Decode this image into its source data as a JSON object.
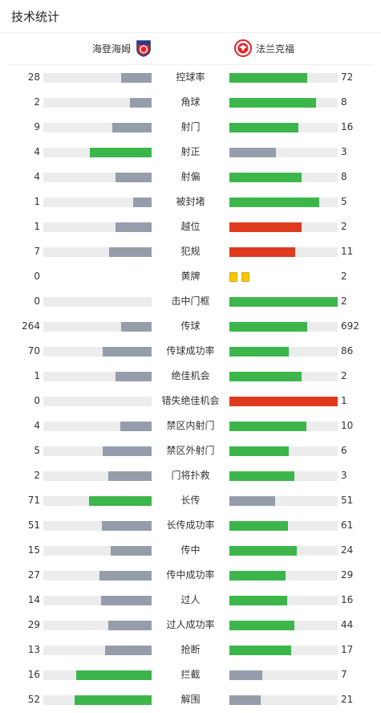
{
  "page": {
    "title": "技术统计"
  },
  "teams": {
    "home": "海登海姆",
    "away": "法兰克福"
  },
  "colors": {
    "win": "#3cb64a",
    "lose": "#959dab",
    "alert": "#e03a1e",
    "track": "#ececec",
    "yellow": "#f5c70a"
  },
  "stats": [
    {
      "label": "控球率",
      "home": "28",
      "away": "72",
      "home_fill": 0.28,
      "away_fill": 0.72,
      "home_color": "lose",
      "away_color": "win"
    },
    {
      "label": "角球",
      "home": "2",
      "away": "8",
      "home_fill": 0.2,
      "away_fill": 0.8,
      "home_color": "lose",
      "away_color": "win"
    },
    {
      "label": "射门",
      "home": "9",
      "away": "16",
      "home_fill": 0.36,
      "away_fill": 0.64,
      "home_color": "lose",
      "away_color": "win"
    },
    {
      "label": "射正",
      "home": "4",
      "away": "3",
      "home_fill": 0.57,
      "away_fill": 0.43,
      "home_color": "win",
      "away_color": "lose"
    },
    {
      "label": "射偏",
      "home": "4",
      "away": "8",
      "home_fill": 0.33,
      "away_fill": 0.67,
      "home_color": "lose",
      "away_color": "win"
    },
    {
      "label": "被封堵",
      "home": "1",
      "away": "5",
      "home_fill": 0.17,
      "away_fill": 0.83,
      "home_color": "lose",
      "away_color": "win"
    },
    {
      "label": "越位",
      "home": "1",
      "away": "2",
      "home_fill": 0.33,
      "away_fill": 0.67,
      "home_color": "lose",
      "away_color": "alert"
    },
    {
      "label": "犯规",
      "home": "7",
      "away": "11",
      "home_fill": 0.39,
      "away_fill": 0.61,
      "home_color": "lose",
      "away_color": "alert"
    },
    {
      "label": "黄牌",
      "home": "0",
      "away": "2",
      "type": "cards",
      "home_cards": 0,
      "away_cards": 2
    },
    {
      "label": "击中门框",
      "home": "0",
      "away": "2",
      "home_fill": 0,
      "away_fill": 1,
      "home_color": "lose",
      "away_color": "win"
    },
    {
      "label": "传球",
      "home": "264",
      "away": "692",
      "home_fill": 0.28,
      "away_fill": 0.72,
      "home_color": "lose",
      "away_color": "win"
    },
    {
      "label": "传球成功率",
      "home": "70",
      "away": "86",
      "home_fill": 0.45,
      "away_fill": 0.55,
      "home_color": "lose",
      "away_color": "win"
    },
    {
      "label": "绝佳机会",
      "home": "1",
      "away": "2",
      "home_fill": 0.33,
      "away_fill": 0.67,
      "home_color": "lose",
      "away_color": "win"
    },
    {
      "label": "错失绝佳机会",
      "home": "0",
      "away": "1",
      "home_fill": 0,
      "away_fill": 1,
      "home_color": "lose",
      "away_color": "alert"
    },
    {
      "label": "禁区内射门",
      "home": "4",
      "away": "10",
      "home_fill": 0.29,
      "away_fill": 0.71,
      "home_color": "lose",
      "away_color": "win"
    },
    {
      "label": "禁区外射门",
      "home": "5",
      "away": "6",
      "home_fill": 0.45,
      "away_fill": 0.55,
      "home_color": "lose",
      "away_color": "win"
    },
    {
      "label": "门将扑救",
      "home": "2",
      "away": "3",
      "home_fill": 0.4,
      "away_fill": 0.6,
      "home_color": "lose",
      "away_color": "win"
    },
    {
      "label": "长传",
      "home": "71",
      "away": "51",
      "home_fill": 0.58,
      "away_fill": 0.42,
      "home_color": "win",
      "away_color": "lose"
    },
    {
      "label": "长传成功率",
      "home": "51",
      "away": "61",
      "home_fill": 0.46,
      "away_fill": 0.54,
      "home_color": "lose",
      "away_color": "win"
    },
    {
      "label": "传中",
      "home": "15",
      "away": "24",
      "home_fill": 0.38,
      "away_fill": 0.62,
      "home_color": "lose",
      "away_color": "win"
    },
    {
      "label": "传中成功率",
      "home": "27",
      "away": "29",
      "home_fill": 0.48,
      "away_fill": 0.52,
      "home_color": "lose",
      "away_color": "win"
    },
    {
      "label": "过人",
      "home": "14",
      "away": "16",
      "home_fill": 0.47,
      "away_fill": 0.53,
      "home_color": "lose",
      "away_color": "win"
    },
    {
      "label": "过人成功率",
      "home": "29",
      "away": "44",
      "home_fill": 0.4,
      "away_fill": 0.6,
      "home_color": "lose",
      "away_color": "win"
    },
    {
      "label": "抢断",
      "home": "13",
      "away": "17",
      "home_fill": 0.43,
      "away_fill": 0.57,
      "home_color": "lose",
      "away_color": "win"
    },
    {
      "label": "拦截",
      "home": "16",
      "away": "7",
      "home_fill": 0.7,
      "away_fill": 0.3,
      "home_color": "win",
      "away_color": "lose"
    },
    {
      "label": "解围",
      "home": "52",
      "away": "21",
      "home_fill": 0.71,
      "away_fill": 0.29,
      "home_color": "win",
      "away_color": "lose"
    }
  ]
}
